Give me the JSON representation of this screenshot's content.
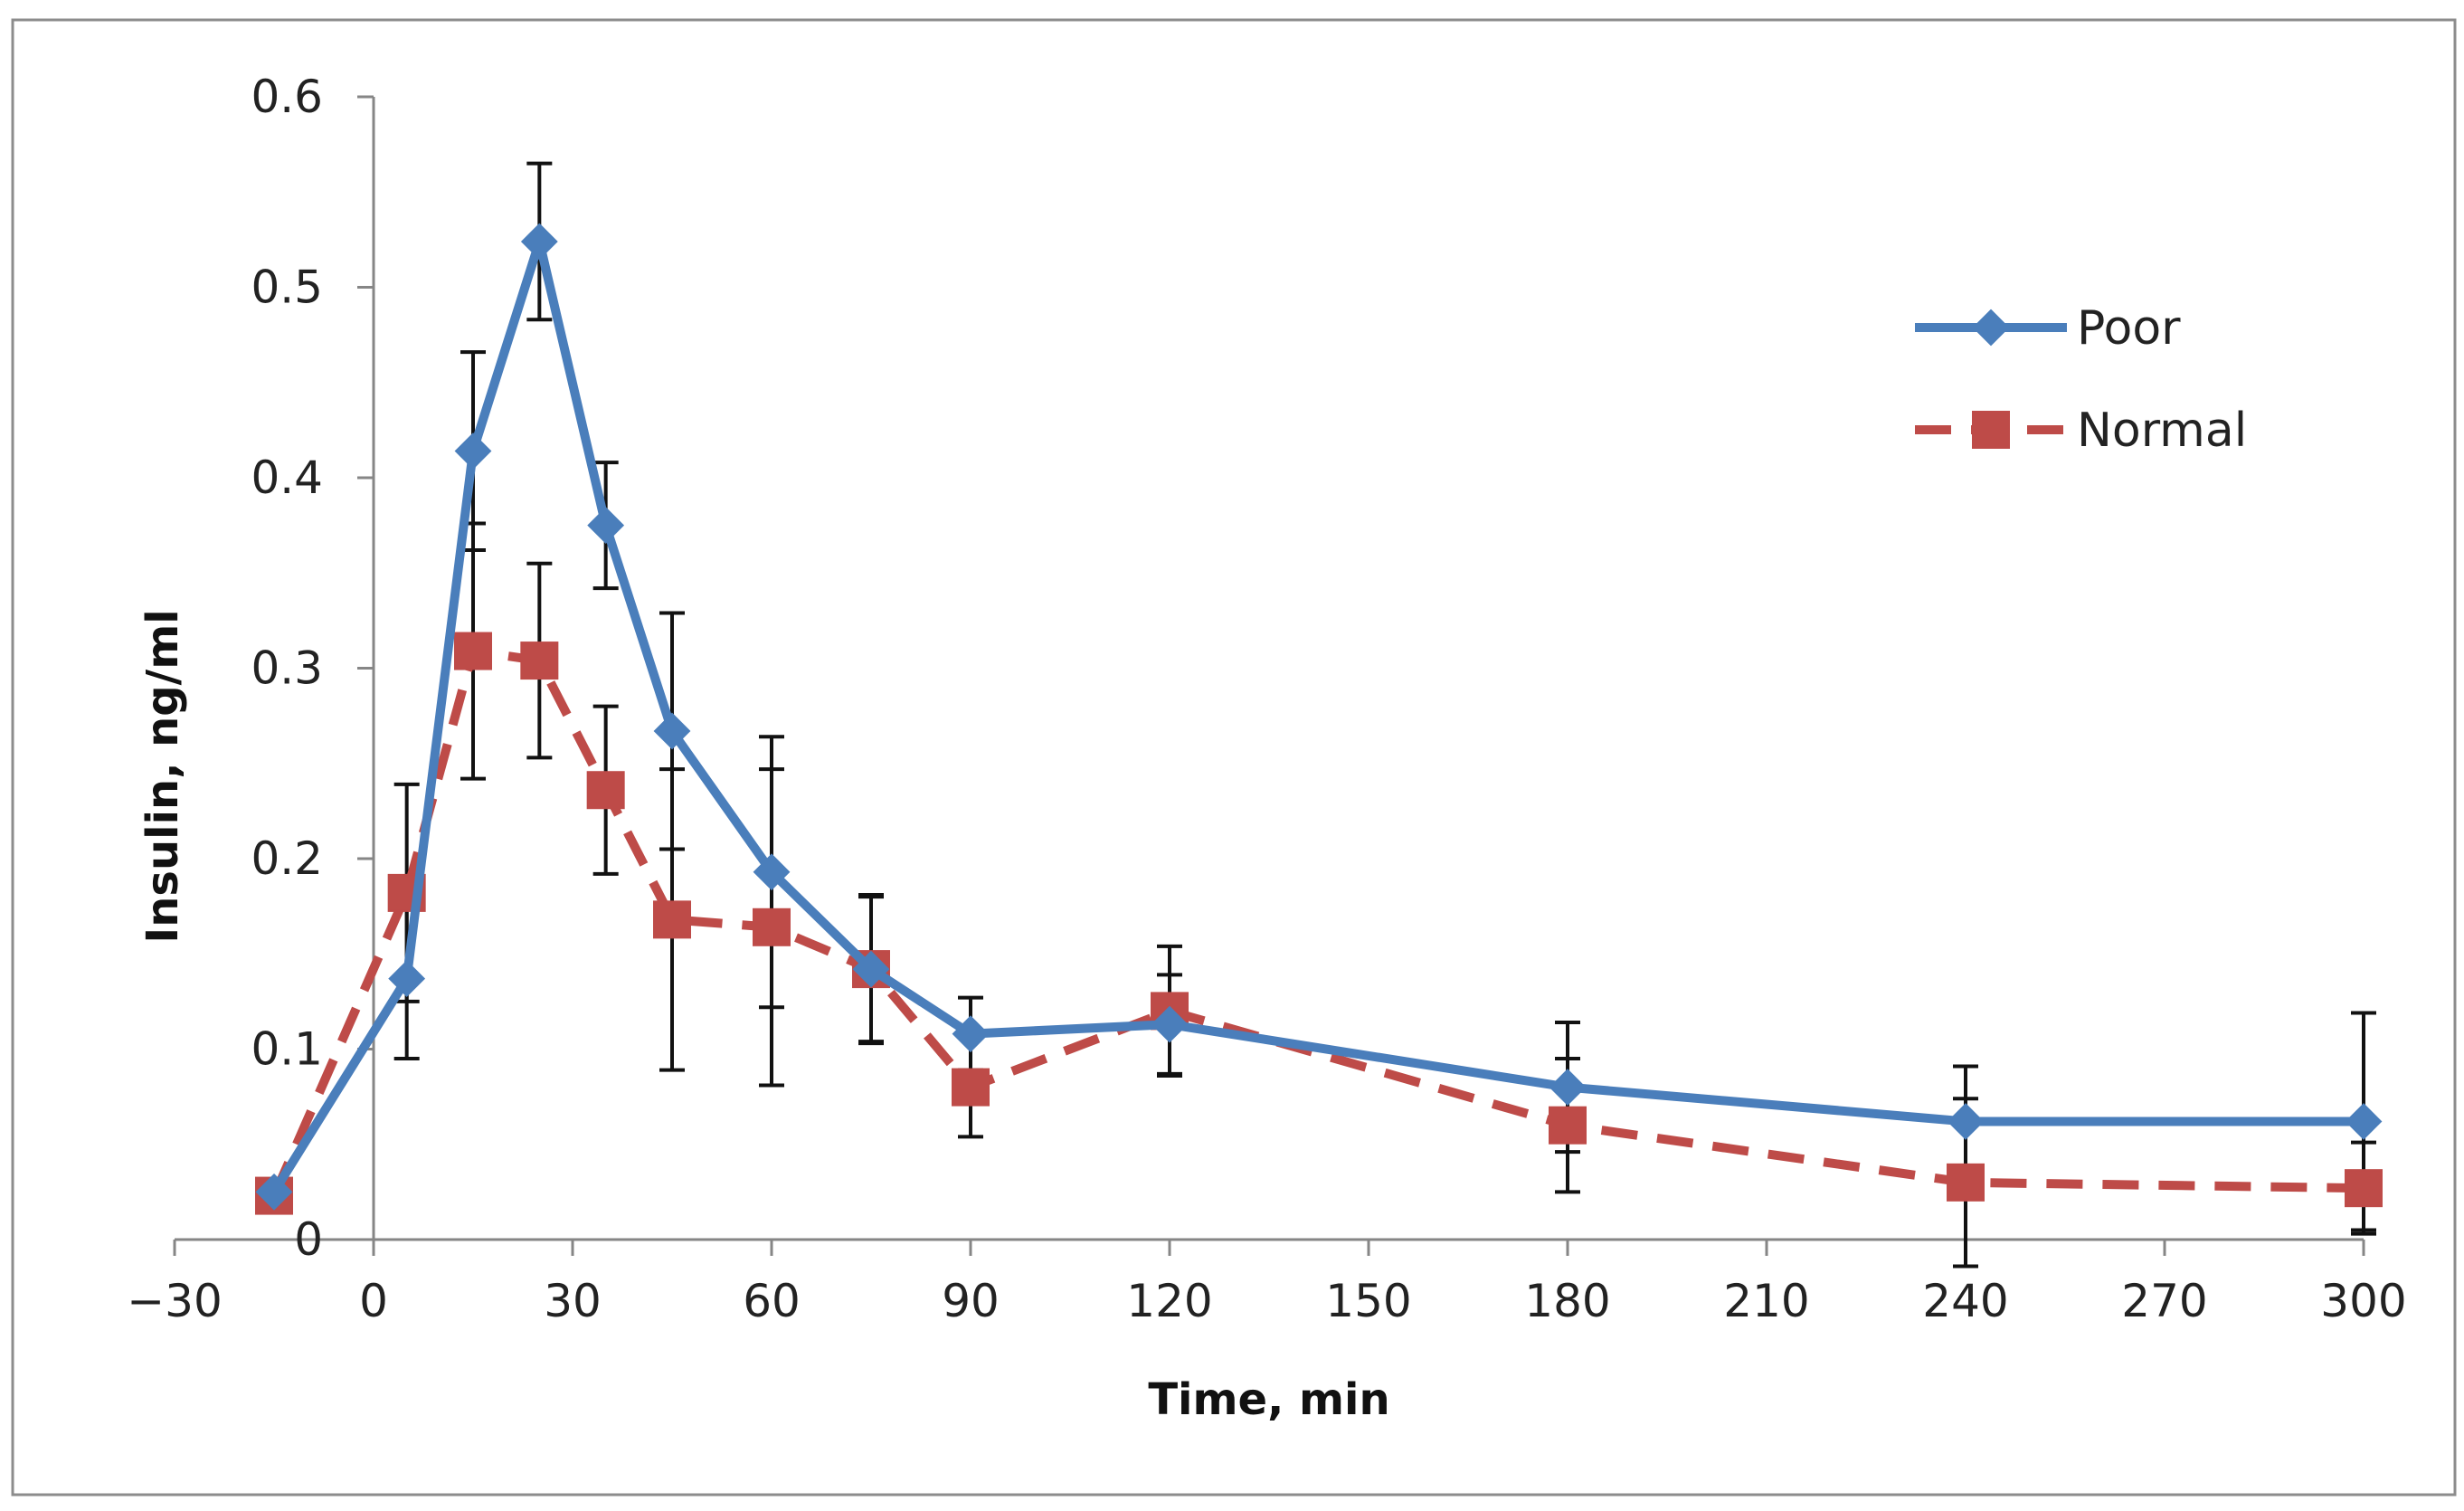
{
  "chart_data": {
    "type": "line",
    "title": "",
    "xlabel": "Time, min",
    "ylabel": "Insulin, ng/ml",
    "xlim": [
      -30,
      300
    ],
    "ylim": [
      0,
      0.6
    ],
    "grid": false,
    "legend_position": "top-right",
    "x_ticks": [
      {
        "pos": -30,
        "label": "−30"
      },
      {
        "pos": 0,
        "label": "0"
      },
      {
        "pos": 30,
        "label": "30"
      },
      {
        "pos": 60,
        "label": "60"
      },
      {
        "pos": 90,
        "label": "90"
      },
      {
        "pos": 120,
        "label": "120"
      },
      {
        "pos": 150,
        "label": "150"
      },
      {
        "pos": 180,
        "label": "180"
      },
      {
        "pos": 210,
        "label": "210"
      },
      {
        "pos": 240,
        "label": "240"
      },
      {
        "pos": 270,
        "label": "270"
      },
      {
        "pos": 300,
        "label": "300"
      }
    ],
    "y_ticks": [
      {
        "value": 0,
        "label": "0"
      },
      {
        "value": 0.1,
        "label": "0.1"
      },
      {
        "value": 0.2,
        "label": "0.2"
      },
      {
        "value": 0.3,
        "label": "0.3"
      },
      {
        "value": 0.4,
        "label": "0.4"
      },
      {
        "value": 0.5,
        "label": "0.5"
      },
      {
        "value": 0.6,
        "label": "0.6"
      }
    ],
    "series": [
      {
        "name": "Poor",
        "color": "#4a7ebb",
        "line_style": "solid",
        "marker": "diamond",
        "points": [
          {
            "x": -15,
            "y": 0.025,
            "err": null
          },
          {
            "x": 5,
            "y": 0.137,
            "err": 0.042
          },
          {
            "x": 15,
            "y": 0.414,
            "err": 0.052
          },
          {
            "x": 25,
            "y": 0.524,
            "err": 0.041
          },
          {
            "x": 35,
            "y": 0.375,
            "err": 0.033
          },
          {
            "x": 45,
            "y": 0.267,
            "err": 0.062
          },
          {
            "x": 60,
            "y": 0.193,
            "err": 0.071
          },
          {
            "x": 75,
            "y": 0.142,
            "err": 0.039
          },
          {
            "x": 90,
            "y": 0.108,
            "err": 0.019
          },
          {
            "x": 120,
            "y": 0.113,
            "err": 0.026
          },
          {
            "x": 180,
            "y": 0.08,
            "err": 0.034
          },
          {
            "x": 240,
            "y": 0.062,
            "err": 0.029
          },
          {
            "x": 300,
            "y": 0.062,
            "err": 0.057
          }
        ]
      },
      {
        "name": "Normal",
        "color": "#be4b48",
        "line_style": "dashed",
        "marker": "square",
        "points": [
          {
            "x": -15,
            "y": 0.023,
            "err": null
          },
          {
            "x": 5,
            "y": 0.182,
            "err": 0.057
          },
          {
            "x": 15,
            "y": 0.309,
            "err": 0.067
          },
          {
            "x": 25,
            "y": 0.304,
            "err": 0.051
          },
          {
            "x": 35,
            "y": 0.236,
            "err": 0.044
          },
          {
            "x": 45,
            "y": 0.168,
            "err": 0.079
          },
          {
            "x": 60,
            "y": 0.164,
            "err": 0.083
          },
          {
            "x": 75,
            "y": 0.142,
            "err": 0.038
          },
          {
            "x": 90,
            "y": 0.08,
            "err": 0.026
          },
          {
            "x": 120,
            "y": 0.12,
            "err": 0.034
          },
          {
            "x": 180,
            "y": 0.06,
            "err": 0.035
          },
          {
            "x": 240,
            "y": 0.03,
            "err": 0.044
          },
          {
            "x": 300,
            "y": 0.027,
            "err": 0.024
          }
        ]
      }
    ]
  }
}
